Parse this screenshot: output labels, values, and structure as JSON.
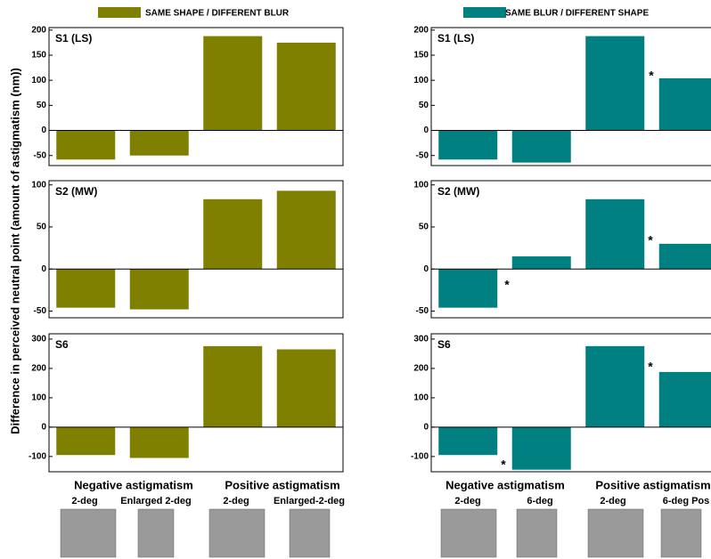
{
  "y_label": "Difference in perceived neutral point (amount of astigmatism (nm))",
  "columns": [
    {
      "legend": "SAME SHAPE / DIFFERENT BLUR",
      "color": "#808000",
      "groups": [
        "Negative astigmatism",
        "Positive astigmatism"
      ],
      "conditions": [
        "2-deg",
        "Enlarged 2-deg",
        "2-deg",
        "Enlarged-2-deg"
      ]
    },
    {
      "legend": "SAME BLUR / DIFFERENT SHAPE",
      "color": "#008080",
      "groups": [
        "Negative astigmatism",
        "Positive astigmatism"
      ],
      "conditions": [
        "2-deg",
        "6-deg",
        "2-deg",
        "6-deg Pos"
      ]
    }
  ],
  "chart_data": [
    {
      "type": "bar",
      "title": "S1 (LS)",
      "values": [
        -58,
        -50,
        188,
        175
      ],
      "color": "#808000",
      "ylim": [
        -70,
        205
      ],
      "yticks": [
        -50,
        0,
        50,
        100,
        150,
        200
      ]
    },
    {
      "type": "bar",
      "title": "S2 (MW)",
      "values": [
        -46,
        -48,
        83,
        93
      ],
      "color": "#808000",
      "ylim": [
        -58,
        105
      ],
      "yticks": [
        -50,
        0,
        50,
        100
      ]
    },
    {
      "type": "bar",
      "title": "S6",
      "values": [
        -95,
        -105,
        276,
        265
      ],
      "color": "#808000",
      "ylim": [
        -152,
        318
      ],
      "yticks": [
        -100,
        0,
        100,
        200,
        300
      ]
    },
    {
      "type": "bar",
      "title": "S1 (LS)",
      "values": [
        -58,
        -64,
        188,
        104
      ],
      "color": "#008080",
      "ylim": [
        -70,
        205
      ],
      "yticks": [
        -50,
        0,
        50,
        100,
        150,
        200
      ],
      "annotations": [
        "*"
      ]
    },
    {
      "type": "bar",
      "title": "S2 (MW)",
      "values": [
        -46,
        15,
        83,
        30
      ],
      "color": "#008080",
      "ylim": [
        -58,
        105
      ],
      "yticks": [
        -50,
        0,
        50,
        100
      ],
      "annotations": [
        "*",
        "*"
      ]
    },
    {
      "type": "bar",
      "title": "S6",
      "values": [
        -95,
        -145,
        276,
        188
      ],
      "color": "#008080",
      "ylim": [
        -152,
        318
      ],
      "yticks": [
        -100,
        0,
        100,
        200,
        300
      ],
      "annotations": [
        "*",
        "*"
      ]
    }
  ]
}
